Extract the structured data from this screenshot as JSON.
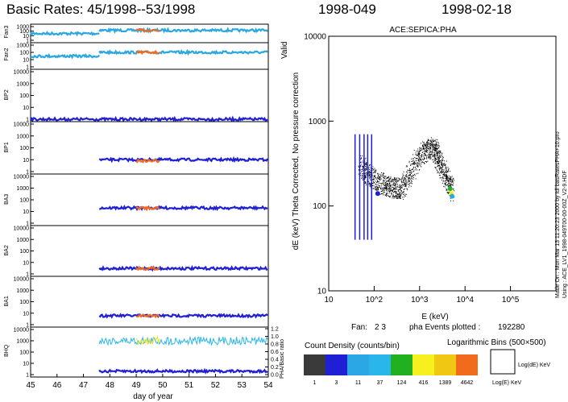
{
  "header": {
    "left_title": "Basic Rates: 45/1998--53/1998",
    "day_label": "1998-049",
    "date_label": "1998-02-18"
  },
  "chart_data": [
    {
      "type": "line",
      "title": "Basic Rates: 45/1998--53/1998",
      "xlabel": "day of year",
      "xlim": [
        45,
        54
      ],
      "x_ticks": [
        "45",
        "46",
        "47",
        "48",
        "49",
        "50",
        "51",
        "52",
        "53",
        "54"
      ],
      "scale": "log",
      "valid_label": "Valid",
      "highlight_range": [
        49.0,
        49.9
      ],
      "panels": [
        {
          "name": "Fan3",
          "ylim": [
            1,
            1000
          ],
          "ticks": [
            "1",
            "10",
            "100",
            "1000"
          ],
          "series": [
            {
              "color": "#29a8e0",
              "segments": [
                {
                  "x": [
                    45,
                    47.6
                  ],
                  "y": 30
                },
                {
                  "x": [
                    47.6,
                    54
                  ],
                  "y": 150
                }
              ]
            },
            {
              "color": "#f26b1d",
              "segments": [
                {
                  "x": [
                    49.0,
                    49.9
                  ],
                  "y": 150
                }
              ]
            }
          ]
        },
        {
          "name": "Fan2",
          "ylim": [
            1,
            1000
          ],
          "ticks": [
            "1",
            "10",
            "100",
            "1000"
          ],
          "series": [
            {
              "color": "#29a8e0",
              "segments": [
                {
                  "x": [
                    45,
                    47.6
                  ],
                  "y": 30
                },
                {
                  "x": [
                    47.6,
                    54
                  ],
                  "y": 100
                }
              ]
            },
            {
              "color": "#f26b1d",
              "segments": [
                {
                  "x": [
                    49.0,
                    49.9
                  ],
                  "y": 100
                }
              ]
            }
          ]
        },
        {
          "name": "BP2",
          "ylim": [
            1,
            10000
          ],
          "ticks": [
            "1",
            "10",
            "100",
            "1000",
            "10000"
          ],
          "series": [
            {
              "color": "#1f1fd6",
              "segments": [
                {
                  "x": [
                    45,
                    54
                  ],
                  "y": 1
                }
              ]
            }
          ]
        },
        {
          "name": "BP1",
          "ylim": [
            1,
            10000
          ],
          "ticks": [
            "1",
            "10",
            "100",
            "1000",
            "10000"
          ],
          "series": [
            {
              "color": "#1f1fd6",
              "segments": [
                {
                  "x": [
                    47.6,
                    54
                  ],
                  "y": 10
                }
              ]
            },
            {
              "color": "#f26b1d",
              "segments": [
                {
                  "x": [
                    49.0,
                    49.9
                  ],
                  "y": 8
                }
              ]
            }
          ]
        },
        {
          "name": "BA3",
          "ylim": [
            1,
            10000
          ],
          "ticks": [
            "1",
            "10",
            "100",
            "1000",
            "10000"
          ],
          "series": [
            {
              "color": "#1f1fd6",
              "segments": [
                {
                  "x": [
                    47.6,
                    54
                  ],
                  "y": 20
                }
              ]
            },
            {
              "color": "#f26b1d",
              "segments": [
                {
                  "x": [
                    49.0,
                    49.9
                  ],
                  "y": 20
                }
              ]
            }
          ]
        },
        {
          "name": "BA2",
          "ylim": [
            1,
            10000
          ],
          "ticks": [
            "1",
            "10",
            "100",
            "1000",
            "10000"
          ],
          "series": [
            {
              "color": "#1f1fd6",
              "segments": [
                {
                  "x": [
                    47.6,
                    54
                  ],
                  "y": 3
                }
              ]
            },
            {
              "color": "#f26b1d",
              "segments": [
                {
                  "x": [
                    49.0,
                    49.9
                  ],
                  "y": 3
                }
              ]
            }
          ]
        },
        {
          "name": "BA1",
          "ylim": [
            1,
            10000
          ],
          "ticks": [
            "1",
            "10",
            "100",
            "1000",
            "10000"
          ],
          "series": [
            {
              "color": "#1f1fd6",
              "segments": [
                {
                  "x": [
                    47.6,
                    54
                  ],
                  "y": 6
                }
              ]
            },
            {
              "color": "#f26b1d",
              "segments": [
                {
                  "x": [
                    49.0,
                    49.9
                  ],
                  "y": 6
                }
              ]
            }
          ]
        },
        {
          "name": "BHQ",
          "ylim": [
            1,
            10000
          ],
          "ticks": [
            "1",
            "10",
            "100",
            "1000",
            "10000"
          ],
          "right_ticks": [
            "0.0",
            "0.2",
            "0.4",
            "0.6",
            "0.8",
            "1.0",
            "1.2"
          ],
          "right_label": "PHA/Basic ratio",
          "series": [
            {
              "color": "#29b6e8",
              "segments": [
                {
                  "x": [
                    47.6,
                    54
                  ],
                  "y": 1000
                }
              ]
            },
            {
              "color": "#f0e020",
              "segments": [
                {
                  "x": [
                    49.0,
                    49.9
                  ],
                  "y": 1000
                }
              ]
            },
            {
              "color": "#1f1fd6",
              "segments": [
                {
                  "x": [
                    47.6,
                    54
                  ],
                  "y": 2
                }
              ]
            }
          ]
        }
      ]
    },
    {
      "type": "scatter",
      "title": "ACE:SEPICA:PHA",
      "xlabel": "E (keV)",
      "ylabel": "dE (keV) Theta Corrected, No pressure correction",
      "x_scale": "log",
      "y_scale": "log",
      "xlim": [
        10,
        1000000
      ],
      "ylim": [
        10,
        10000
      ],
      "x_ticks": [
        "10",
        "10^2",
        "10^3",
        "10^4",
        "10^5"
      ],
      "y_ticks": [
        "10",
        "100",
        "1000",
        "10000"
      ],
      "track_points": [
        [
          50,
          300
        ],
        [
          100,
          200
        ],
        [
          200,
          170
        ],
        [
          400,
          160
        ],
        [
          1000,
          400
        ],
        [
          2000,
          500
        ],
        [
          3000,
          300
        ],
        [
          5000,
          150
        ]
      ],
      "side_text": [
        "Made On : Mon Mar 13 11:20:23 2000  by Idl basRatesPHA+10.pro",
        "Using : ACE_LV1_1998-049T00-00-00Z_V2-9.HDF"
      ]
    }
  ],
  "footer": {
    "fan_label": "Fan:",
    "fan_value": "2 3",
    "events_label": "pha Events plotted :",
    "events_value": "192280",
    "count_density_title": "Count Density (counts/bin)",
    "log_bins_label": "Logarithmic Bins (500×500)",
    "legend_y_label": "Log(dE) KeV",
    "legend_x_label": "Log(E) KeV",
    "colorbar": [
      {
        "value": "1",
        "color": "#3a3a3a"
      },
      {
        "value": "3",
        "color": "#1f1fd6"
      },
      {
        "value": "11",
        "color": "#2aa8e6"
      },
      {
        "value": "37",
        "color": "#29b6e8"
      },
      {
        "value": "124",
        "color": "#20b020"
      },
      {
        "value": "416",
        "color": "#f5f01e"
      },
      {
        "value": "1389",
        "color": "#f0c814"
      },
      {
        "value": "4642",
        "color": "#f26b1d"
      }
    ]
  }
}
